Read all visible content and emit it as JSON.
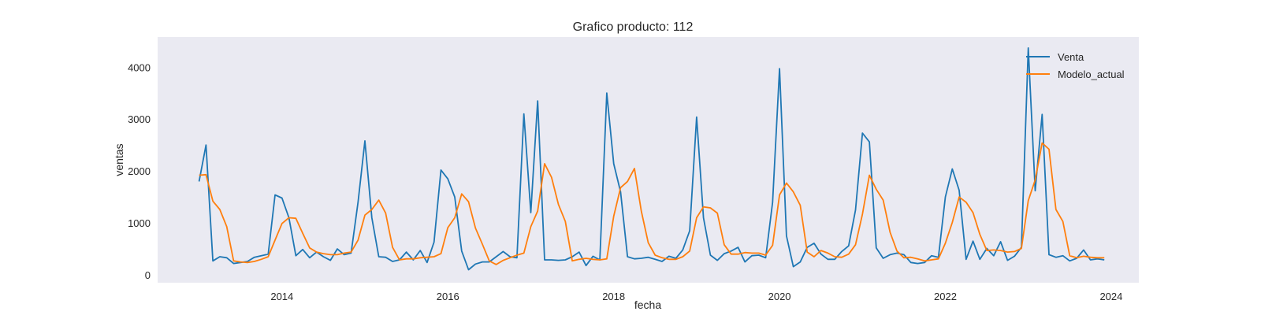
{
  "chart_data": {
    "type": "line",
    "title": "Grafico producto: 112",
    "xlabel": "fecha",
    "ylabel": "ventas",
    "x_ticks": [
      "2014",
      "2016",
      "2018",
      "2020",
      "2022",
      "2024"
    ],
    "y_ticks": [
      0,
      1000,
      2000,
      3000,
      4000
    ],
    "xlim": [
      "2012-07",
      "2024-05"
    ],
    "ylim": [
      -150,
      4580
    ],
    "grid": false,
    "legend_position": "top-right",
    "x": [
      "2013-01",
      "2013-02",
      "2013-03",
      "2013-04",
      "2013-05",
      "2013-06",
      "2013-07",
      "2013-08",
      "2013-09",
      "2013-10",
      "2013-11",
      "2013-12",
      "2014-01",
      "2014-02",
      "2014-03",
      "2014-04",
      "2014-05",
      "2014-06",
      "2014-07",
      "2014-08",
      "2014-09",
      "2014-10",
      "2014-11",
      "2014-12",
      "2015-01",
      "2015-02",
      "2015-03",
      "2015-04",
      "2015-05",
      "2015-06",
      "2015-07",
      "2015-08",
      "2015-09",
      "2015-10",
      "2015-11",
      "2015-12",
      "2016-01",
      "2016-02",
      "2016-03",
      "2016-04",
      "2016-05",
      "2016-06",
      "2016-07",
      "2016-08",
      "2016-09",
      "2016-10",
      "2016-11",
      "2016-12",
      "2017-01",
      "2017-02",
      "2017-03",
      "2017-04",
      "2017-05",
      "2017-06",
      "2017-07",
      "2017-08",
      "2017-09",
      "2017-10",
      "2017-11",
      "2017-12",
      "2018-01",
      "2018-02",
      "2018-03",
      "2018-04",
      "2018-05",
      "2018-06",
      "2018-07",
      "2018-08",
      "2018-09",
      "2018-10",
      "2018-11",
      "2018-12",
      "2019-01",
      "2019-02",
      "2019-03",
      "2019-04",
      "2019-05",
      "2019-06",
      "2019-07",
      "2019-08",
      "2019-09",
      "2019-10",
      "2019-11",
      "2019-12",
      "2020-01",
      "2020-02",
      "2020-03",
      "2020-04",
      "2020-05",
      "2020-06",
      "2020-07",
      "2020-08",
      "2020-09",
      "2020-10",
      "2020-11",
      "2020-12",
      "2021-01",
      "2021-02",
      "2021-03",
      "2021-04",
      "2021-05",
      "2021-06",
      "2021-07",
      "2021-08",
      "2021-09",
      "2021-10",
      "2021-11",
      "2021-12",
      "2022-01",
      "2022-02",
      "2022-03",
      "2022-04",
      "2022-05",
      "2022-06",
      "2022-07",
      "2022-08",
      "2022-09",
      "2022-10",
      "2022-11",
      "2022-12",
      "2023-01",
      "2023-02",
      "2023-03",
      "2023-04",
      "2023-05",
      "2023-06",
      "2023-07",
      "2023-08",
      "2023-09",
      "2023-10",
      "2023-11",
      "2023-12"
    ],
    "series": [
      {
        "name": "Venta",
        "color": "#1f77b4",
        "values": [
          1800,
          2500,
          270,
          350,
          330,
          220,
          240,
          260,
          340,
          370,
          400,
          1540,
          1480,
          1100,
          370,
          490,
          330,
          440,
          350,
          280,
          500,
          390,
          420,
          1400,
          2580,
          1100,
          350,
          340,
          260,
          290,
          440,
          290,
          470,
          240,
          630,
          2020,
          1850,
          1500,
          460,
          100,
          210,
          250,
          250,
          350,
          450,
          350,
          330,
          3100,
          1200,
          3350,
          290,
          290,
          280,
          290,
          350,
          440,
          180,
          360,
          290,
          3500,
          2140,
          1600,
          350,
          310,
          320,
          340,
          300,
          260,
          360,
          320,
          480,
          850,
          3040,
          1100,
          380,
          280,
          410,
          460,
          530,
          250,
          370,
          380,
          330,
          1400,
          3970,
          750,
          160,
          250,
          530,
          610,
          400,
          300,
          300,
          450,
          560,
          1250,
          2730,
          2560,
          520,
          320,
          390,
          420,
          390,
          240,
          220,
          240,
          370,
          340,
          1500,
          2040,
          1630,
          300,
          650,
          300,
          510,
          370,
          640,
          280,
          360,
          530,
          4370,
          1620,
          3090,
          390,
          340,
          370,
          270,
          320,
          480,
          290,
          310,
          290
        ]
      },
      {
        "name": "Modelo_actual",
        "color": "#ff7f0e",
        "values": [
          1920,
          1930,
          1420,
          1260,
          930,
          270,
          250,
          240,
          260,
          300,
          350,
          670,
          990,
          1100,
          1090,
          800,
          520,
          440,
          410,
          390,
          390,
          420,
          440,
          670,
          1150,
          1260,
          1440,
          1190,
          530,
          290,
          310,
          310,
          330,
          340,
          350,
          410,
          910,
          1100,
          1560,
          1410,
          900,
          590,
          270,
          200,
          280,
          330,
          380,
          420,
          930,
          1230,
          2140,
          1880,
          1360,
          1030,
          270,
          300,
          320,
          300,
          290,
          310,
          1130,
          1680,
          1800,
          2050,
          1230,
          620,
          380,
          330,
          300,
          300,
          350,
          460,
          1100,
          1310,
          1290,
          1190,
          580,
          400,
          400,
          430,
          420,
          420,
          380,
          570,
          1540,
          1770,
          1600,
          1340,
          440,
          350,
          470,
          420,
          350,
          340,
          400,
          580,
          1170,
          1920,
          1650,
          1440,
          820,
          460,
          330,
          340,
          310,
          270,
          290,
          310,
          610,
          1010,
          1500,
          1400,
          1200,
          780,
          470,
          480,
          470,
          440,
          450,
          510,
          1430,
          1830,
          2540,
          2420,
          1260,
          1030,
          370,
          330,
          360,
          340,
          330,
          330
        ]
      }
    ]
  }
}
